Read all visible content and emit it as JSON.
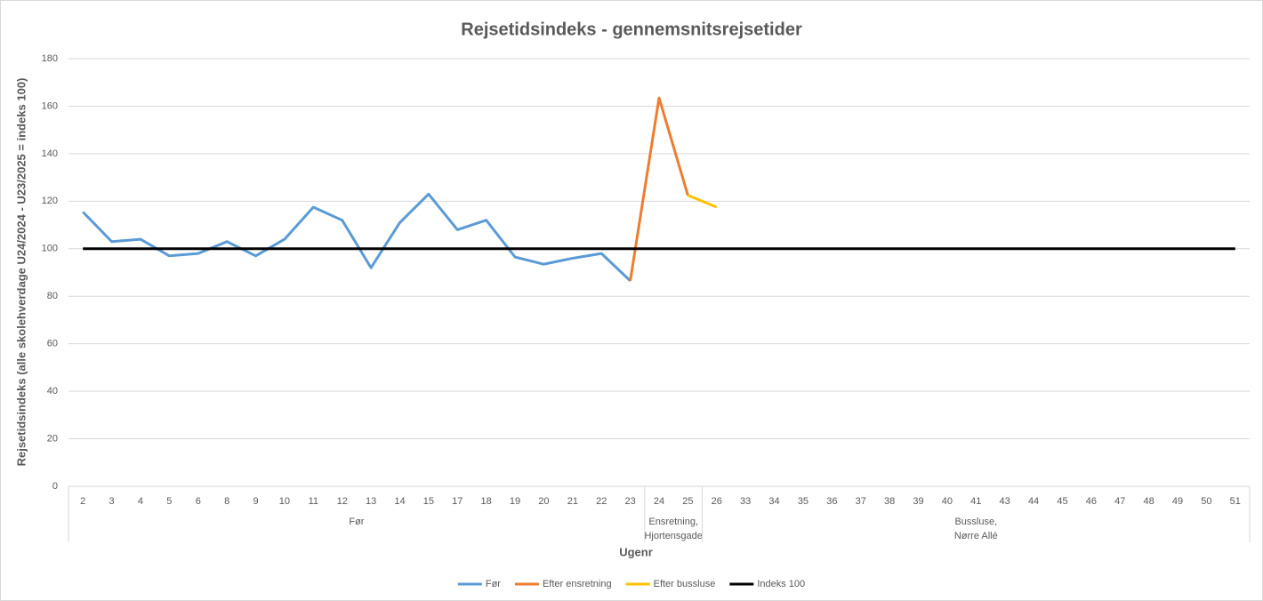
{
  "chart_data": {
    "type": "line",
    "title": "Rejsetidsindeks - gennemsnitsrejsetider",
    "y_label": "Rejsetidsindeks (alle skolehverdage U24/2024 - U23/2025 = indeks 100)",
    "x_label": "Ugenr",
    "categories": [
      "2",
      "3",
      "4",
      "5",
      "6",
      "8",
      "9",
      "10",
      "11",
      "12",
      "13",
      "14",
      "15",
      "17",
      "18",
      "19",
      "20",
      "21",
      "22",
      "23",
      "24",
      "25",
      "26",
      "33",
      "34",
      "35",
      "36",
      "37",
      "38",
      "39",
      "40",
      "41",
      "43",
      "44",
      "45",
      "46",
      "47",
      "48",
      "49",
      "50",
      "51"
    ],
    "x_groups": [
      {
        "label": [
          "Før"
        ],
        "from": "2",
        "to": "23"
      },
      {
        "label": [
          "Ensretning,",
          "Hjortensgade"
        ],
        "from": "24",
        "to": "25"
      },
      {
        "label": [
          "Bussluse,",
          "Nørre Allé"
        ],
        "from": "26",
        "to": "51"
      }
    ],
    "series": [
      {
        "name": "Før",
        "color": "#5b9bd5",
        "values": [
          115.5,
          103,
          104,
          97,
          98,
          103,
          97,
          104,
          117.5,
          112,
          92,
          111,
          123,
          108,
          112,
          96.5,
          93.5,
          96,
          98,
          86.5,
          null,
          null,
          null,
          null,
          null,
          null,
          null,
          null,
          null,
          null,
          null,
          null,
          null,
          null,
          null,
          null,
          null,
          null,
          null,
          null,
          null
        ]
      },
      {
        "name": "Efter ensretning",
        "color": "#ed7d31",
        "values": [
          null,
          null,
          null,
          null,
          null,
          null,
          null,
          null,
          null,
          null,
          null,
          null,
          null,
          null,
          null,
          null,
          null,
          null,
          null,
          86.5,
          163.5,
          122.5,
          null,
          null,
          null,
          null,
          null,
          null,
          null,
          null,
          null,
          null,
          null,
          null,
          null,
          null,
          null,
          null,
          null,
          null,
          null
        ]
      },
      {
        "name": "Efter bussluse",
        "color": "#ffc000",
        "values": [
          null,
          null,
          null,
          null,
          null,
          null,
          null,
          null,
          null,
          null,
          null,
          null,
          null,
          null,
          null,
          null,
          null,
          null,
          null,
          null,
          null,
          122.5,
          117.5,
          null,
          null,
          null,
          null,
          null,
          null,
          null,
          null,
          null,
          null,
          null,
          null,
          null,
          null,
          null,
          null,
          null,
          null
        ]
      },
      {
        "name": "Indeks 100",
        "color": "#000000",
        "values": [
          100,
          100,
          100,
          100,
          100,
          100,
          100,
          100,
          100,
          100,
          100,
          100,
          100,
          100,
          100,
          100,
          100,
          100,
          100,
          100,
          100,
          100,
          100,
          100,
          100,
          100,
          100,
          100,
          100,
          100,
          100,
          100,
          100,
          100,
          100,
          100,
          100,
          100,
          100,
          100,
          100
        ]
      }
    ],
    "ylim": [
      0,
      180
    ],
    "yticks": [
      0,
      20,
      40,
      60,
      80,
      100,
      120,
      140,
      160,
      180
    ],
    "grid": true,
    "legend": "bottom"
  }
}
